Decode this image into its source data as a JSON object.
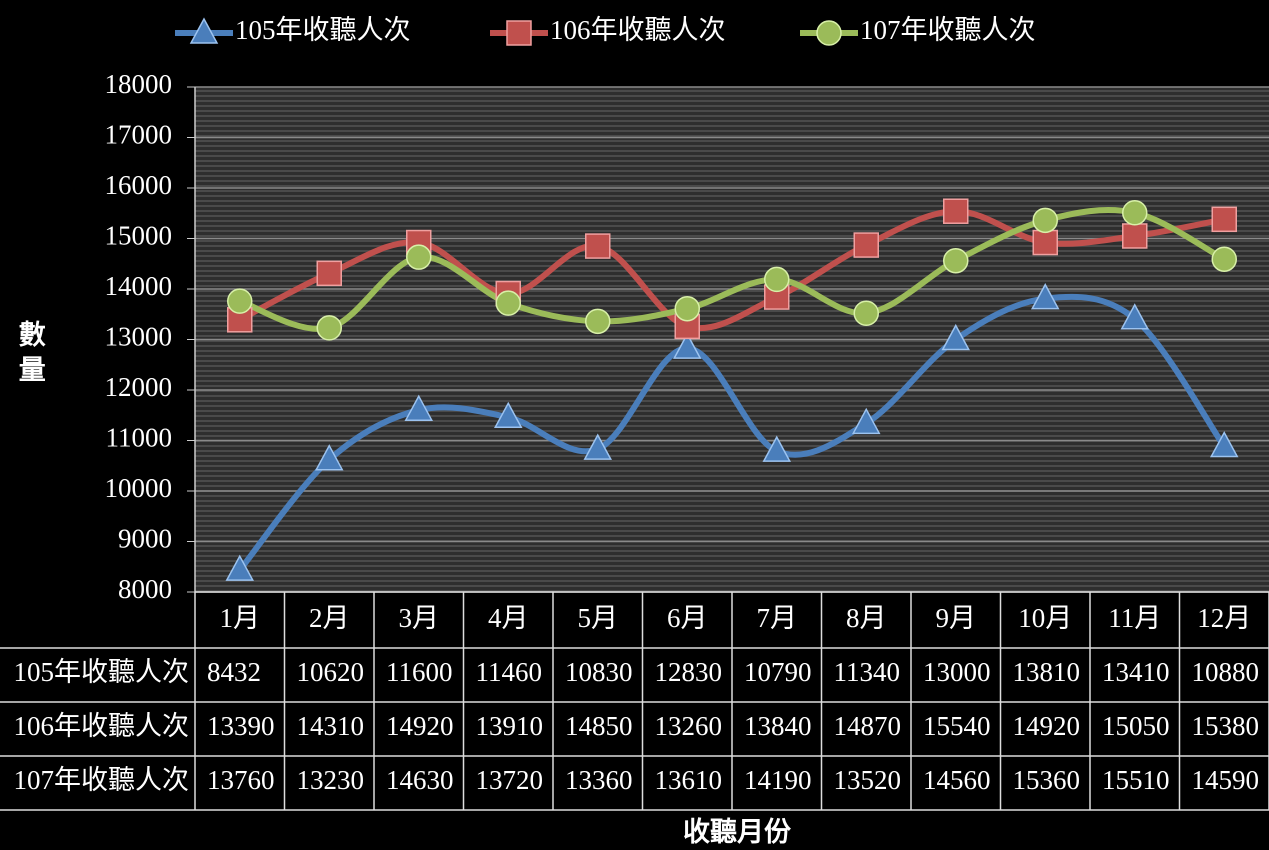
{
  "chart_data": {
    "type": "line",
    "categories": [
      "1月",
      "2月",
      "3月",
      "4月",
      "5月",
      "6月",
      "7月",
      "8月",
      "9月",
      "10月",
      "11月",
      "12月"
    ],
    "series": [
      {
        "name": "105年收聽人次",
        "color": "#4a7ebb",
        "marker": "triangle",
        "values": [
          8432,
          10620,
          11600,
          11460,
          10830,
          12830,
          10790,
          11340,
          13000,
          13810,
          13410,
          10880
        ]
      },
      {
        "name": "106年收聽人次",
        "color": "#c0504d",
        "marker": "square",
        "values": [
          13390,
          14310,
          14920,
          13910,
          14850,
          13260,
          13840,
          14870,
          15540,
          14920,
          15050,
          15380
        ]
      },
      {
        "name": "107年收聽人次",
        "color": "#9bbb59",
        "marker": "circle",
        "values": [
          13760,
          13230,
          14630,
          13720,
          13360,
          13610,
          14190,
          13520,
          14560,
          15360,
          15510,
          14590
        ]
      }
    ],
    "y_label": "數量",
    "x_label": "收聽月份",
    "ylim": [
      8000,
      18000
    ],
    "yticks": [
      8000,
      9000,
      10000,
      11000,
      12000,
      13000,
      14000,
      15000,
      16000,
      17000,
      18000
    ],
    "grid": true,
    "legend": "top",
    "data_table": true
  }
}
